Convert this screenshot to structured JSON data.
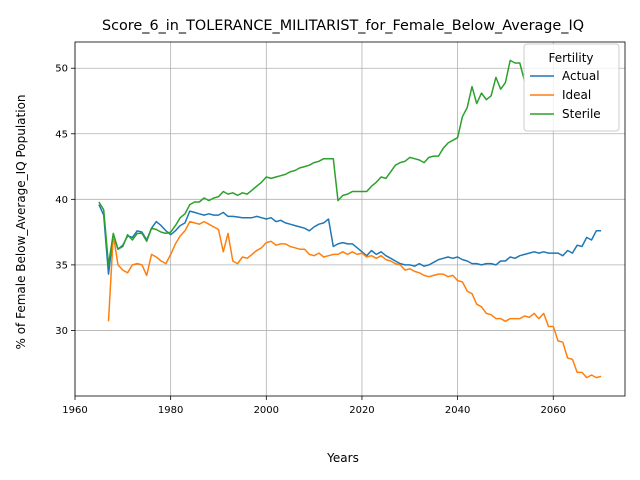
{
  "chart_data": {
    "type": "line",
    "title": "Score_6_in_TOLERANCE_MILITARIST_for_Female_Below_Average_IQ",
    "xlabel": "Years",
    "ylabel": "% of Female Below_Average_IQ Population",
    "xlim": [
      1960,
      2075
    ],
    "ylim": [
      25,
      52
    ],
    "xticks": [
      1960,
      1980,
      2000,
      2020,
      2040,
      2060
    ],
    "yticks": [
      30,
      35,
      40,
      45,
      50
    ],
    "grid": true,
    "legend": {
      "title": "Fertility",
      "placement": "top-right"
    },
    "series": [
      {
        "name": "Actual",
        "color": "#1f77b4",
        "points": [
          [
            1965,
            39.6
          ],
          [
            1966,
            38.8
          ],
          [
            1967,
            34.3
          ],
          [
            1968,
            37.3
          ],
          [
            1969,
            36.2
          ],
          [
            1970,
            36.5
          ],
          [
            1971,
            37.2
          ],
          [
            1972,
            37.1
          ],
          [
            1973,
            37.6
          ],
          [
            1974,
            37.5
          ],
          [
            1975,
            36.9
          ],
          [
            1976,
            37.8
          ],
          [
            1977,
            38.3
          ],
          [
            1978,
            38.0
          ],
          [
            1979,
            37.6
          ],
          [
            1980,
            37.3
          ],
          [
            1981,
            37.6
          ],
          [
            1982,
            38.0
          ],
          [
            1983,
            38.2
          ],
          [
            1984,
            39.1
          ],
          [
            1985,
            39.0
          ],
          [
            1986,
            38.9
          ],
          [
            1987,
            38.8
          ],
          [
            1988,
            38.9
          ],
          [
            1989,
            38.8
          ],
          [
            1990,
            38.8
          ],
          [
            1991,
            39.0
          ],
          [
            1992,
            38.7
          ],
          [
            1993,
            38.7
          ],
          [
            1994,
            38.65
          ],
          [
            1995,
            38.6
          ],
          [
            1996,
            38.6
          ],
          [
            1997,
            38.6
          ],
          [
            1998,
            38.7
          ],
          [
            1999,
            38.6
          ],
          [
            2000,
            38.5
          ],
          [
            2001,
            38.6
          ],
          [
            2002,
            38.3
          ],
          [
            2003,
            38.4
          ],
          [
            2004,
            38.2
          ],
          [
            2005,
            38.1
          ],
          [
            2006,
            38.0
          ],
          [
            2007,
            37.9
          ],
          [
            2008,
            37.8
          ],
          [
            2009,
            37.6
          ],
          [
            2010,
            37.9
          ],
          [
            2011,
            38.1
          ],
          [
            2012,
            38.2
          ],
          [
            2013,
            38.5
          ],
          [
            2014,
            36.4
          ],
          [
            2015,
            36.6
          ],
          [
            2016,
            36.7
          ],
          [
            2017,
            36.6
          ],
          [
            2018,
            36.6
          ],
          [
            2019,
            36.3
          ],
          [
            2020,
            36.0
          ],
          [
            2021,
            35.7
          ],
          [
            2022,
            36.1
          ],
          [
            2023,
            35.8
          ],
          [
            2024,
            36.0
          ],
          [
            2025,
            35.7
          ],
          [
            2026,
            35.5
          ],
          [
            2027,
            35.3
          ],
          [
            2028,
            35.1
          ],
          [
            2029,
            35.0
          ],
          [
            2030,
            35.0
          ],
          [
            2031,
            34.9
          ],
          [
            2032,
            35.1
          ],
          [
            2033,
            34.9
          ],
          [
            2034,
            35.0
          ],
          [
            2035,
            35.2
          ],
          [
            2036,
            35.4
          ],
          [
            2037,
            35.5
          ],
          [
            2038,
            35.6
          ],
          [
            2039,
            35.5
          ],
          [
            2040,
            35.6
          ],
          [
            2041,
            35.4
          ],
          [
            2042,
            35.3
          ],
          [
            2043,
            35.1
          ],
          [
            2044,
            35.1
          ],
          [
            2045,
            35.0
          ],
          [
            2046,
            35.1
          ],
          [
            2047,
            35.1
          ],
          [
            2048,
            35.0
          ],
          [
            2049,
            35.3
          ],
          [
            2050,
            35.3
          ],
          [
            2051,
            35.6
          ],
          [
            2052,
            35.5
          ],
          [
            2053,
            35.7
          ],
          [
            2054,
            35.8
          ],
          [
            2055,
            35.9
          ],
          [
            2056,
            36.0
          ],
          [
            2057,
            35.9
          ],
          [
            2058,
            36.0
          ],
          [
            2059,
            35.9
          ],
          [
            2060,
            35.9
          ],
          [
            2061,
            35.9
          ],
          [
            2062,
            35.7
          ],
          [
            2063,
            36.1
          ],
          [
            2064,
            35.9
          ],
          [
            2065,
            36.5
          ],
          [
            2066,
            36.4
          ],
          [
            2067,
            37.1
          ],
          [
            2068,
            36.9
          ],
          [
            2069,
            37.6
          ],
          [
            2070,
            37.6
          ]
        ]
      },
      {
        "name": "Ideal",
        "color": "#ff7f0e",
        "points": [
          [
            1967,
            30.7
          ],
          [
            1968,
            37.3
          ],
          [
            1969,
            35.0
          ],
          [
            1970,
            34.6
          ],
          [
            1971,
            34.4
          ],
          [
            1972,
            35.0
          ],
          [
            1973,
            35.1
          ],
          [
            1974,
            35.0
          ],
          [
            1975,
            34.2
          ],
          [
            1976,
            35.8
          ],
          [
            1977,
            35.6
          ],
          [
            1978,
            35.3
          ],
          [
            1979,
            35.1
          ],
          [
            1980,
            35.8
          ],
          [
            1981,
            36.6
          ],
          [
            1982,
            37.2
          ],
          [
            1983,
            37.6
          ],
          [
            1984,
            38.3
          ],
          [
            1985,
            38.2
          ],
          [
            1986,
            38.1
          ],
          [
            1987,
            38.3
          ],
          [
            1988,
            38.1
          ],
          [
            1989,
            37.9
          ],
          [
            1990,
            37.7
          ],
          [
            1991,
            36.0
          ],
          [
            1992,
            37.4
          ],
          [
            1993,
            35.3
          ],
          [
            1994,
            35.1
          ],
          [
            1995,
            35.6
          ],
          [
            1996,
            35.5
          ],
          [
            1997,
            35.8
          ],
          [
            1998,
            36.1
          ],
          [
            1999,
            36.3
          ],
          [
            2000,
            36.7
          ],
          [
            2001,
            36.8
          ],
          [
            2002,
            36.5
          ],
          [
            2003,
            36.6
          ],
          [
            2004,
            36.6
          ],
          [
            2005,
            36.4
          ],
          [
            2006,
            36.3
          ],
          [
            2007,
            36.2
          ],
          [
            2008,
            36.2
          ],
          [
            2009,
            35.8
          ],
          [
            2010,
            35.7
          ],
          [
            2011,
            35.9
          ],
          [
            2012,
            35.6
          ],
          [
            2013,
            35.7
          ],
          [
            2014,
            35.8
          ],
          [
            2015,
            35.8
          ],
          [
            2016,
            36.0
          ],
          [
            2017,
            35.8
          ],
          [
            2018,
            36.0
          ],
          [
            2019,
            35.8
          ],
          [
            2020,
            35.9
          ],
          [
            2021,
            35.6
          ],
          [
            2022,
            35.7
          ],
          [
            2023,
            35.5
          ],
          [
            2024,
            35.7
          ],
          [
            2025,
            35.4
          ],
          [
            2026,
            35.3
          ],
          [
            2027,
            35.1
          ],
          [
            2028,
            35.0
          ],
          [
            2029,
            34.6
          ],
          [
            2030,
            34.7
          ],
          [
            2031,
            34.5
          ],
          [
            2032,
            34.4
          ],
          [
            2033,
            34.2
          ],
          [
            2034,
            34.1
          ],
          [
            2035,
            34.2
          ],
          [
            2036,
            34.3
          ],
          [
            2037,
            34.3
          ],
          [
            2038,
            34.1
          ],
          [
            2039,
            34.2
          ],
          [
            2040,
            33.8
          ],
          [
            2041,
            33.7
          ],
          [
            2042,
            33.0
          ],
          [
            2043,
            32.8
          ],
          [
            2044,
            32.0
          ],
          [
            2045,
            31.8
          ],
          [
            2046,
            31.3
          ],
          [
            2047,
            31.2
          ],
          [
            2048,
            30.9
          ],
          [
            2049,
            30.9
          ],
          [
            2050,
            30.7
          ],
          [
            2051,
            30.9
          ],
          [
            2052,
            30.9
          ],
          [
            2053,
            30.9
          ],
          [
            2054,
            31.1
          ],
          [
            2055,
            31.0
          ],
          [
            2056,
            31.3
          ],
          [
            2057,
            30.9
          ],
          [
            2058,
            31.3
          ],
          [
            2059,
            30.3
          ],
          [
            2060,
            30.3
          ],
          [
            2061,
            29.2
          ],
          [
            2062,
            29.1
          ],
          [
            2063,
            27.9
          ],
          [
            2064,
            27.8
          ],
          [
            2065,
            26.8
          ],
          [
            2066,
            26.8
          ],
          [
            2067,
            26.4
          ],
          [
            2068,
            26.6
          ],
          [
            2069,
            26.4
          ],
          [
            2070,
            26.5
          ]
        ]
      },
      {
        "name": "Sterile",
        "color": "#2ca02c",
        "points": [
          [
            1965,
            39.8
          ],
          [
            1966,
            39.2
          ],
          [
            1967,
            35.0
          ],
          [
            1968,
            37.4
          ],
          [
            1969,
            36.2
          ],
          [
            1970,
            36.4
          ],
          [
            1971,
            37.3
          ],
          [
            1972,
            36.9
          ],
          [
            1973,
            37.4
          ],
          [
            1974,
            37.4
          ],
          [
            1975,
            36.8
          ],
          [
            1976,
            37.8
          ],
          [
            1977,
            37.7
          ],
          [
            1978,
            37.5
          ],
          [
            1979,
            37.4
          ],
          [
            1980,
            37.5
          ],
          [
            1981,
            38.0
          ],
          [
            1982,
            38.6
          ],
          [
            1983,
            38.9
          ],
          [
            1984,
            39.6
          ],
          [
            1985,
            39.8
          ],
          [
            1986,
            39.8
          ],
          [
            1987,
            40.1
          ],
          [
            1988,
            39.9
          ],
          [
            1989,
            40.1
          ],
          [
            1990,
            40.2
          ],
          [
            1991,
            40.6
          ],
          [
            1992,
            40.4
          ],
          [
            1993,
            40.5
          ],
          [
            1994,
            40.3
          ],
          [
            1995,
            40.5
          ],
          [
            1996,
            40.4
          ],
          [
            1997,
            40.7
          ],
          [
            1998,
            41.0
          ],
          [
            1999,
            41.3
          ],
          [
            2000,
            41.7
          ],
          [
            2001,
            41.6
          ],
          [
            2002,
            41.7
          ],
          [
            2003,
            41.8
          ],
          [
            2004,
            41.9
          ],
          [
            2005,
            42.1
          ],
          [
            2006,
            42.2
          ],
          [
            2007,
            42.4
          ],
          [
            2008,
            42.5
          ],
          [
            2009,
            42.6
          ],
          [
            2010,
            42.8
          ],
          [
            2011,
            42.9
          ],
          [
            2012,
            43.1
          ],
          [
            2013,
            43.1
          ],
          [
            2014,
            43.1
          ],
          [
            2015,
            39.9
          ],
          [
            2016,
            40.3
          ],
          [
            2017,
            40.4
          ],
          [
            2018,
            40.6
          ],
          [
            2019,
            40.6
          ],
          [
            2020,
            40.6
          ],
          [
            2021,
            40.6
          ],
          [
            2022,
            41.0
          ],
          [
            2023,
            41.3
          ],
          [
            2024,
            41.7
          ],
          [
            2025,
            41.6
          ],
          [
            2026,
            42.1
          ],
          [
            2027,
            42.6
          ],
          [
            2028,
            42.8
          ],
          [
            2029,
            42.9
          ],
          [
            2030,
            43.2
          ],
          [
            2031,
            43.1
          ],
          [
            2032,
            43.0
          ],
          [
            2033,
            42.8
          ],
          [
            2034,
            43.2
          ],
          [
            2035,
            43.3
          ],
          [
            2036,
            43.3
          ],
          [
            2037,
            43.9
          ],
          [
            2038,
            44.3
          ],
          [
            2039,
            44.5
          ],
          [
            2040,
            44.7
          ],
          [
            2041,
            46.3
          ],
          [
            2042,
            47.0
          ],
          [
            2043,
            48.6
          ],
          [
            2044,
            47.3
          ],
          [
            2045,
            48.1
          ],
          [
            2046,
            47.6
          ],
          [
            2047,
            47.9
          ],
          [
            2048,
            49.3
          ],
          [
            2049,
            48.4
          ],
          [
            2050,
            48.9
          ],
          [
            2051,
            50.6
          ],
          [
            2052,
            50.4
          ],
          [
            2053,
            50.4
          ],
          [
            2054,
            49.0
          ]
        ]
      }
    ]
  }
}
